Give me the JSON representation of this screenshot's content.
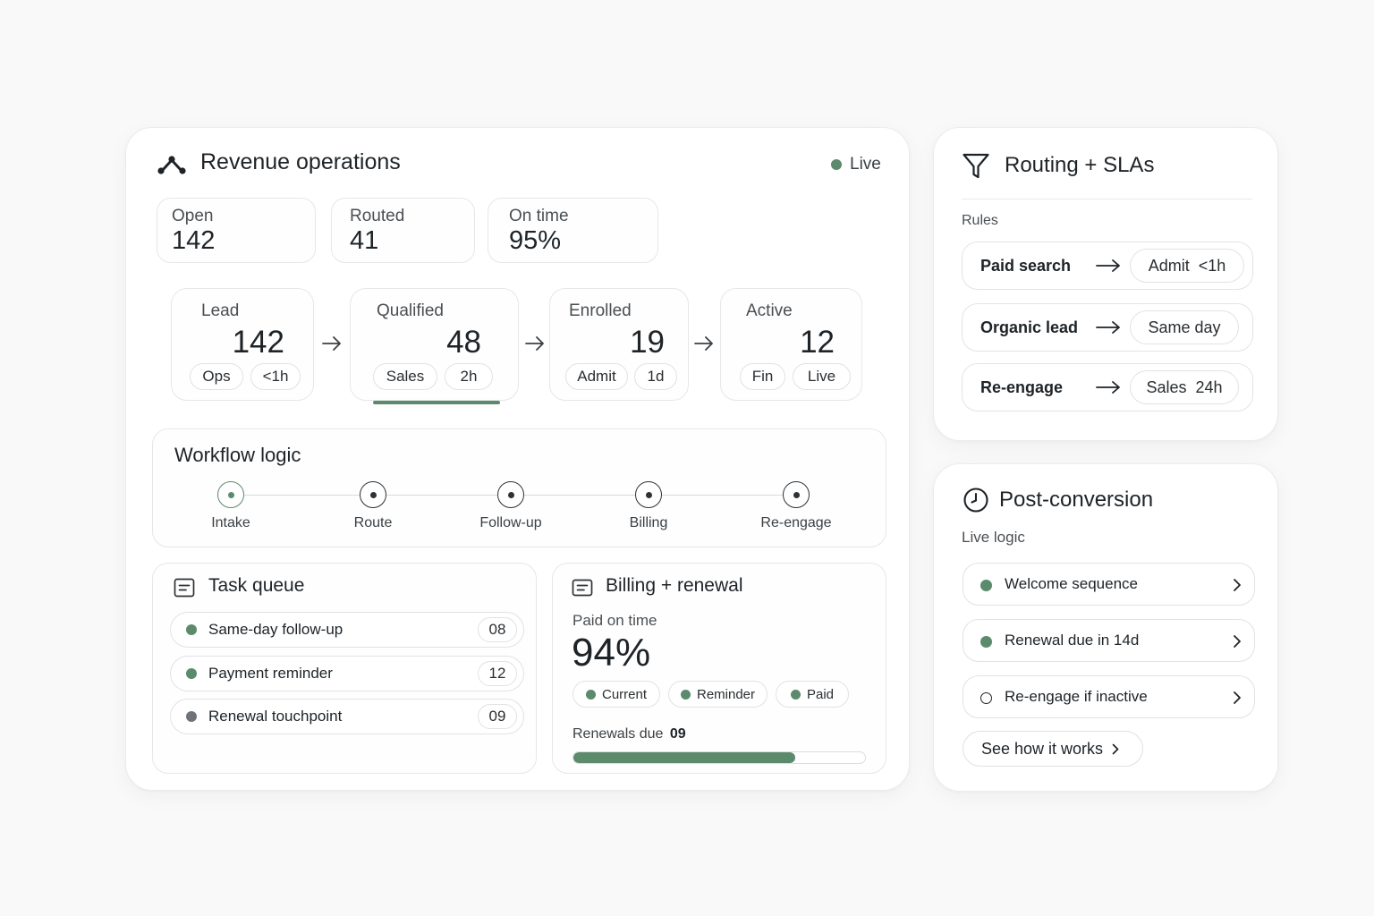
{
  "main": {
    "title": "Revenue operations",
    "live_label": "Live",
    "stats": [
      {
        "label": "Open",
        "value": "142"
      },
      {
        "label": "Routed",
        "value": "41"
      },
      {
        "label": "On time",
        "value": "95%"
      }
    ],
    "pipeline": [
      {
        "label": "Lead",
        "value": "142",
        "tags": [
          "Ops",
          "<1h"
        ]
      },
      {
        "label": "Qualified",
        "value": "48",
        "tags": [
          "Sales",
          "2h"
        ]
      },
      {
        "label": "Enrolled",
        "value": "19",
        "tags": [
          "Admit",
          "1d"
        ]
      },
      {
        "label": "Active",
        "value": "12",
        "tags": [
          "Fin",
          "Live"
        ]
      }
    ],
    "workflow": {
      "title": "Workflow logic",
      "steps": [
        "Intake",
        "Route",
        "Follow-up",
        "Billing",
        "Re-engage"
      ]
    },
    "tasks": {
      "title": "Task queue",
      "items": [
        {
          "label": "Same-day follow-up",
          "count": "08"
        },
        {
          "label": "Payment reminder",
          "count": "12"
        },
        {
          "label": "Renewal touchpoint",
          "count": "09"
        }
      ]
    },
    "billing": {
      "title": "Billing + renewal",
      "subtitle": "Paid on time",
      "percent": "94%",
      "tags": [
        "Current",
        "Reminder",
        "Paid"
      ],
      "renewals_label": "Renewals due",
      "renewals_value": "09",
      "progress_fraction": 0.76
    }
  },
  "routing": {
    "title": "Routing + SLAs",
    "rules_label": "Rules",
    "rules": [
      {
        "source": "Paid search",
        "target": "Admit  <1h"
      },
      {
        "source": "Organic lead",
        "target": "Same day"
      },
      {
        "source": "Re-engage",
        "target": "Sales  24h"
      }
    ]
  },
  "post": {
    "title": "Post-conversion",
    "subtitle": "Live logic",
    "items": [
      {
        "label": "Welcome sequence",
        "status": "filled"
      },
      {
        "label": "Renewal due in 14d",
        "status": "filled"
      },
      {
        "label": "Re-engage if inactive",
        "status": "outline"
      }
    ],
    "cta": "See how it works"
  },
  "colors": {
    "accent": "#5b8a6c",
    "gray_dot": "#6f7378",
    "text": "#1e2327"
  }
}
